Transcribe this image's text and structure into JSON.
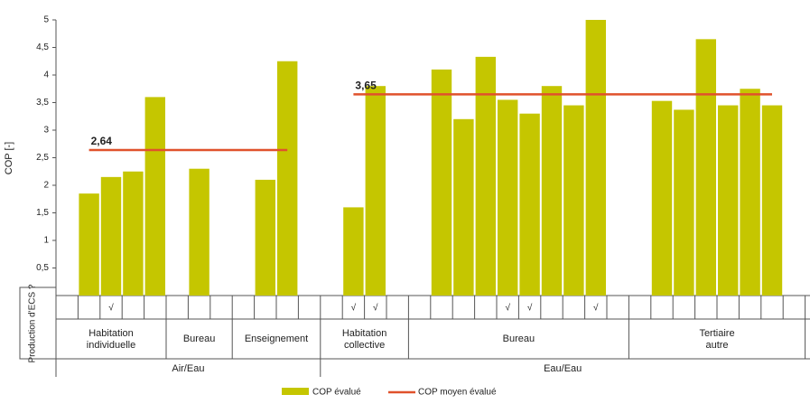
{
  "chart_data": {
    "type": "bar",
    "y_label": "COP [-]",
    "ylim": [
      0,
      5
    ],
    "yticks": [
      {
        "value": 0.5,
        "label": "0,5"
      },
      1,
      {
        "value": 1.5,
        "label": "1,5"
      },
      2,
      {
        "value": 2.5,
        "label": "2,5"
      },
      3,
      {
        "value": 3.5,
        "label": "3,5"
      },
      4,
      {
        "value": 4.5,
        "label": "4,5"
      },
      5
    ],
    "row_label": "Production d'ECS ?",
    "series": [
      {
        "name": "COP évalué",
        "color": "#c5c600"
      },
      {
        "name": "COP moyen évalué",
        "color": "#e0522c"
      }
    ],
    "groups": [
      {
        "label": "Air/Eau",
        "average": 2.64,
        "average_label": "2,64",
        "subgroups": [
          {
            "label": "Habitation individuelle",
            "values": [
              null,
              1.85,
              2.15,
              2.25,
              3.6
            ],
            "ecs": [
              null,
              null,
              "√",
              null,
              null
            ]
          },
          {
            "label": "Bureau",
            "values": [
              null,
              2.3,
              null
            ],
            "ecs": [
              null,
              null,
              null
            ]
          },
          {
            "label": "Enseignement",
            "values": [
              null,
              2.1,
              4.25,
              null
            ],
            "ecs": [
              null,
              null,
              null,
              null
            ]
          }
        ]
      },
      {
        "label": "Eau/Eau",
        "average": 3.65,
        "average_label": "3,65",
        "subgroups": [
          {
            "label": "Habitation collective",
            "values": [
              null,
              1.6,
              3.8,
              null
            ],
            "ecs": [
              null,
              "√",
              "√",
              null
            ]
          },
          {
            "label": "Bureau",
            "values": [
              null,
              4.1,
              3.2,
              4.33,
              3.55,
              3.3,
              3.8,
              3.45,
              5.0,
              null
            ],
            "ecs": [
              null,
              null,
              null,
              null,
              "√",
              "√",
              null,
              null,
              "√",
              null
            ]
          },
          {
            "label": "Tertiaire autre",
            "values": [
              null,
              3.53,
              3.37,
              4.65,
              3.45,
              3.75,
              3.45,
              null
            ],
            "ecs": [
              null,
              null,
              null,
              null,
              null,
              null,
              null,
              null
            ]
          }
        ]
      }
    ]
  }
}
